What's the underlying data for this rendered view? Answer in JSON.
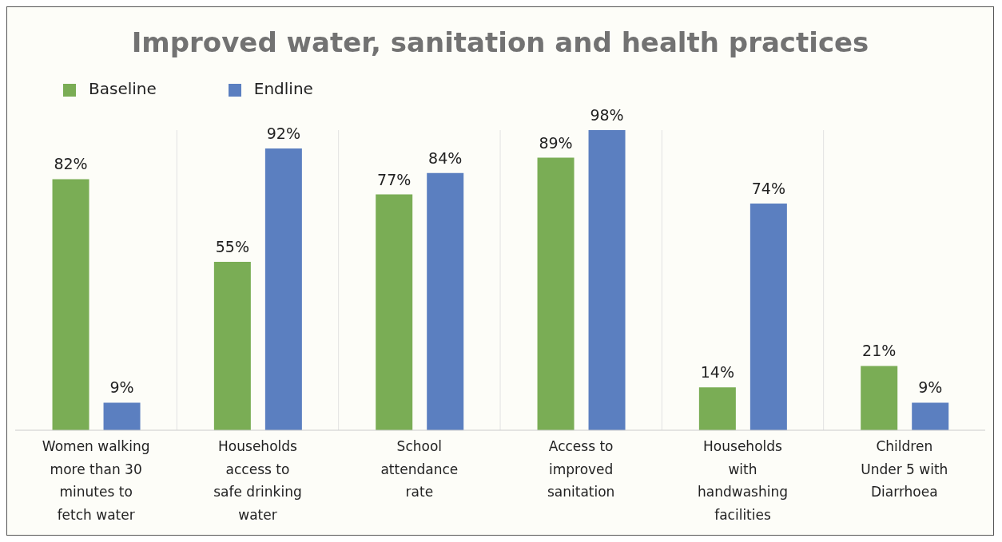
{
  "chart_data": {
    "type": "bar",
    "title": "Improved water, sanitation and health practices",
    "categories": [
      "Women walking more than 30 minutes to fetch water",
      "Households access to safe drinking water",
      "School attendance rate",
      "Access to improved sanitation",
      "Households with handwashing facilities",
      "Children Under 5 with Diarrhoea"
    ],
    "series": [
      {
        "name": "Baseline",
        "color": "#7aad55",
        "values": [
          82,
          55,
          77,
          89,
          14,
          21
        ],
        "value_labels": [
          "82%",
          "55%",
          "77%",
          "89%",
          "14%",
          "21%"
        ]
      },
      {
        "name": "Endline",
        "color": "#5b7fc0",
        "values": [
          9,
          92,
          84,
          98,
          74,
          9
        ],
        "value_labels": [
          "9%",
          "92%",
          "84%",
          "98%",
          "74%",
          "9%"
        ]
      }
    ],
    "legend": "top left",
    "grid": "x"
  }
}
